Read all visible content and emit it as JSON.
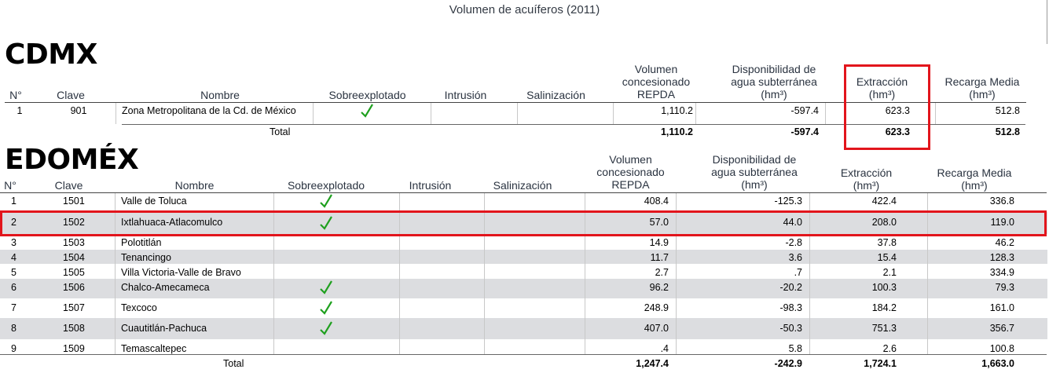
{
  "title": "Volumen de acuíferos (2011)",
  "cdmx": {
    "heading": "CDMX",
    "columns": {
      "no": "N°",
      "clave": "Clave",
      "nombre": "Nombre",
      "sobre": "Sobreexplotado",
      "intrusion": "Intrusión",
      "saliniz": "Salinización",
      "volumen": [
        "Volumen",
        "concesionado",
        "REPDA"
      ],
      "disp": [
        "Disponibilidad de",
        "agua subterránea",
        "(hm³)"
      ],
      "extr": [
        "Extracción",
        "(hm³)"
      ],
      "recarga": [
        "Recarga Media",
        "(hm³)"
      ]
    },
    "rows": [
      {
        "no": "1",
        "clave": "901",
        "nombre": "Zona Metropolitana de la Cd. de México",
        "sobre": true,
        "volumen": "1,110.2",
        "disp": "-597.4",
        "extr": "623.3",
        "recarga": "512.8"
      }
    ],
    "total": {
      "label": "Total",
      "volumen": "1,110.2",
      "disp": "-597.4",
      "extr": "623.3",
      "recarga": "512.8"
    }
  },
  "edomex": {
    "heading": "EDOMÉX",
    "columns": {
      "no": "N°",
      "clave": "Clave",
      "nombre": "Nombre",
      "sobre": "Sobreexplotado",
      "intrusion": "Intrusión",
      "saliniz": "Salinización",
      "volumen": [
        "Volumen",
        "concesionado",
        "REPDA"
      ],
      "disp": [
        "Disponibilidad de",
        "agua subterránea",
        "(hm³)"
      ],
      "extr": [
        "Extracción",
        "(hm³)"
      ],
      "recarga": [
        "Recarga Media",
        "(hm³)"
      ]
    },
    "rows": [
      {
        "no": "1",
        "clave": "1501",
        "nombre": "Valle de Toluca",
        "sobre": true,
        "volumen": "408.4",
        "disp": "-125.3",
        "extr": "422.4",
        "recarga": "336.8"
      },
      {
        "no": "2",
        "clave": "1502",
        "nombre": "Ixtlahuaca-Atlacomulco",
        "sobre": true,
        "volumen": "57.0",
        "disp": "44.0",
        "extr": "208.0",
        "recarga": "119.0"
      },
      {
        "no": "3",
        "clave": "1503",
        "nombre": "Polotitlán",
        "sobre": false,
        "volumen": "14.9",
        "disp": "-2.8",
        "extr": "37.8",
        "recarga": "46.2"
      },
      {
        "no": "4",
        "clave": "1504",
        "nombre": "Tenancingo",
        "sobre": false,
        "volumen": "11.7",
        "disp": "3.6",
        "extr": "15.4",
        "recarga": "128.3"
      },
      {
        "no": "5",
        "clave": "1505",
        "nombre": "Villa Victoria-Valle de Bravo",
        "sobre": false,
        "volumen": "2.7",
        "disp": ".7",
        "extr": "2.1",
        "recarga": "334.9"
      },
      {
        "no": "6",
        "clave": "1506",
        "nombre": "Chalco-Amecameca",
        "sobre": true,
        "volumen": "96.2",
        "disp": "-20.2",
        "extr": "100.3",
        "recarga": "79.3"
      },
      {
        "no": "7",
        "clave": "1507",
        "nombre": "Texcoco",
        "sobre": true,
        "volumen": "248.9",
        "disp": "-98.3",
        "extr": "184.2",
        "recarga": "161.0"
      },
      {
        "no": "8",
        "clave": "1508",
        "nombre": "Cuautitlán-Pachuca",
        "sobre": true,
        "volumen": "407.0",
        "disp": "-50.3",
        "extr": "751.3",
        "recarga": "356.7"
      },
      {
        "no": "9",
        "clave": "1509",
        "nombre": "Temascaltepec",
        "sobre": false,
        "volumen": ".4",
        "disp": "5.8",
        "extr": "2.6",
        "recarga": "100.8"
      }
    ],
    "total": {
      "label": "Total",
      "volumen": "1,247.4",
      "disp": "-242.9",
      "extr": "1,724.1",
      "recarga": "1,663.0"
    }
  },
  "colors": {
    "highlight": "#e2151c",
    "check": "#1fa01f",
    "stripe": "#dcdde0"
  }
}
